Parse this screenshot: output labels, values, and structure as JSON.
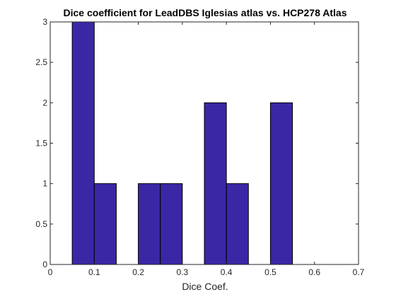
{
  "chart_data": {
    "type": "bar",
    "title": "Dice coefficient for LeadDBS Iglesias atlas vs. HCP278 Atlas",
    "xlabel": "Dice Coef.",
    "ylabel": "",
    "xlim": [
      0,
      0.7
    ],
    "ylim": [
      0,
      3
    ],
    "xticks": [
      "0",
      "0.1",
      "0.2",
      "0.3",
      "0.4",
      "0.5",
      "0.6",
      "0.7"
    ],
    "yticks": [
      "0",
      "0.5",
      "1",
      "1.5",
      "2",
      "2.5",
      "3"
    ],
    "bins": [
      {
        "start": 0.05,
        "end": 0.1,
        "count": 3
      },
      {
        "start": 0.1,
        "end": 0.15,
        "count": 1
      },
      {
        "start": 0.15,
        "end": 0.2,
        "count": 0
      },
      {
        "start": 0.2,
        "end": 0.25,
        "count": 1
      },
      {
        "start": 0.25,
        "end": 0.3,
        "count": 1
      },
      {
        "start": 0.3,
        "end": 0.35,
        "count": 0
      },
      {
        "start": 0.35,
        "end": 0.4,
        "count": 2
      },
      {
        "start": 0.4,
        "end": 0.45,
        "count": 1
      },
      {
        "start": 0.45,
        "end": 0.5,
        "count": 0
      },
      {
        "start": 0.5,
        "end": 0.55,
        "count": 2
      }
    ],
    "grid": false,
    "bar_color": "#3a27a6",
    "edge_color": "#000000"
  }
}
